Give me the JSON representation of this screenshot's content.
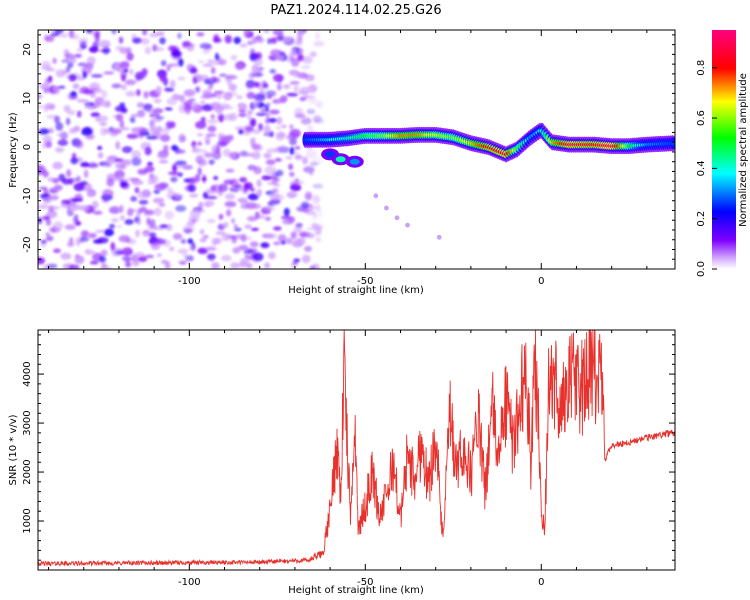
{
  "title": "PAZ1.2024.114.02.25.G26",
  "chart_data": [
    {
      "type": "heatmap",
      "xlabel": "Height of straight line (km)",
      "ylabel": "Frequency (Hz)",
      "xlim": [
        -143,
        38
      ],
      "ylim": [
        -25,
        24
      ],
      "x_ticks": [
        -100,
        -50,
        0
      ],
      "x_tick_labels": [
        "-100",
        "-50",
        "0"
      ],
      "y_ticks": [
        -20,
        -10,
        0,
        10,
        20
      ],
      "y_tick_labels": [
        "-20",
        "-10",
        "0",
        "10",
        "20"
      ],
      "colorbar": {
        "label": "Normalized spectral amplitude",
        "range": [
          0,
          0.95
        ],
        "ticks": [
          0,
          0.2,
          0.4,
          0.6,
          0.8
        ],
        "tick_labels": [
          "0.0",
          "0.2",
          "0.4",
          "0.6",
          "0.8"
        ],
        "colormap": [
          "#ffffff",
          "#7f00ff",
          "#0000ff",
          "#00ffff",
          "#00ff00",
          "#ffff00",
          "#ff0000",
          "#ff0080"
        ]
      },
      "noise_region": {
        "x": [
          -143,
          -63
        ],
        "y": [
          -25,
          24
        ],
        "amplitude_range": [
          0.05,
          0.25
        ]
      },
      "signal_ridge": {
        "x": [
          -67,
          -60,
          -55,
          -50,
          -45,
          -40,
          -35,
          -30,
          -25,
          -20,
          -15,
          -10,
          -7,
          -3,
          0,
          3,
          8,
          15,
          20,
          25,
          30,
          38
        ],
        "frequency": [
          1.5,
          1.5,
          1.8,
          2.3,
          2.3,
          2.3,
          2.5,
          2.5,
          2.0,
          0.8,
          0.0,
          -1.5,
          -0.5,
          2.0,
          3.5,
          1.0,
          0.5,
          0.5,
          0.2,
          0.2,
          0.5,
          0.8
        ],
        "amplitude": [
          0.3,
          0.4,
          0.45,
          0.55,
          0.6,
          0.75,
          0.75,
          0.65,
          0.6,
          0.7,
          0.85,
          0.9,
          0.6,
          0.35,
          0.4,
          0.7,
          0.9,
          0.85,
          0.95,
          0.55,
          0.35,
          0.3
        ]
      },
      "secondary_signal": {
        "x": [
          -60,
          -57,
          -53
        ],
        "frequency": [
          -1.5,
          -2.5,
          -3.0
        ],
        "amplitude": [
          0.3,
          0.45,
          0.35
        ]
      },
      "scattered_points": [
        {
          "x": -47,
          "frequency": -10
        },
        {
          "x": -44,
          "frequency": -12.5
        },
        {
          "x": -41,
          "frequency": -14.5
        },
        {
          "x": -38,
          "frequency": -16
        },
        {
          "x": -29,
          "frequency": -18.5
        }
      ]
    },
    {
      "type": "line",
      "xlabel": "Height of straight line (km)",
      "ylabel": "SNR (10 * v/v)",
      "xlim": [
        -143,
        38
      ],
      "ylim": [
        0,
        4900
      ],
      "x_ticks": [
        -100,
        -50,
        0
      ],
      "x_tick_labels": [
        "-100",
        "-50",
        "0"
      ],
      "y_ticks": [
        1000,
        2000,
        3000,
        4000
      ],
      "y_tick_labels": [
        "1000",
        "2000",
        "3000",
        "4000"
      ],
      "series": [
        {
          "color": "#e8312c",
          "x": [
            -143,
            -120,
            -100,
            -80,
            -66,
            -62,
            -60,
            -58,
            -57,
            -56,
            -55,
            -54,
            -53,
            -52,
            -50,
            -48,
            -46,
            -44,
            -42,
            -40,
            -38,
            -36,
            -34,
            -32,
            -30,
            -28,
            -26,
            -24,
            -22,
            -20,
            -18,
            -16,
            -14,
            -12,
            -10,
            -8,
            -6,
            -4,
            -3,
            -2,
            -1,
            0,
            1,
            2,
            4,
            6,
            8,
            10,
            12,
            14,
            16,
            17,
            18,
            19,
            20,
            25,
            30,
            35,
            38
          ],
          "y": [
            130,
            140,
            150,
            160,
            200,
            350,
            1200,
            2600,
            1500,
            4300,
            2200,
            1000,
            3200,
            800,
            1300,
            2000,
            1100,
            1500,
            2200,
            1000,
            2400,
            1800,
            2600,
            1700,
            2800,
            600,
            3100,
            2000,
            2500,
            1900,
            3200,
            1600,
            3300,
            2300,
            3500,
            2500,
            3600,
            3900,
            2000,
            4500,
            3400,
            1200,
            800,
            3600,
            3800,
            3300,
            4000,
            3800,
            3700,
            4100,
            3900,
            4300,
            2200,
            2400,
            2550,
            2600,
            2700,
            2780,
            2800
          ]
        }
      ]
    }
  ]
}
